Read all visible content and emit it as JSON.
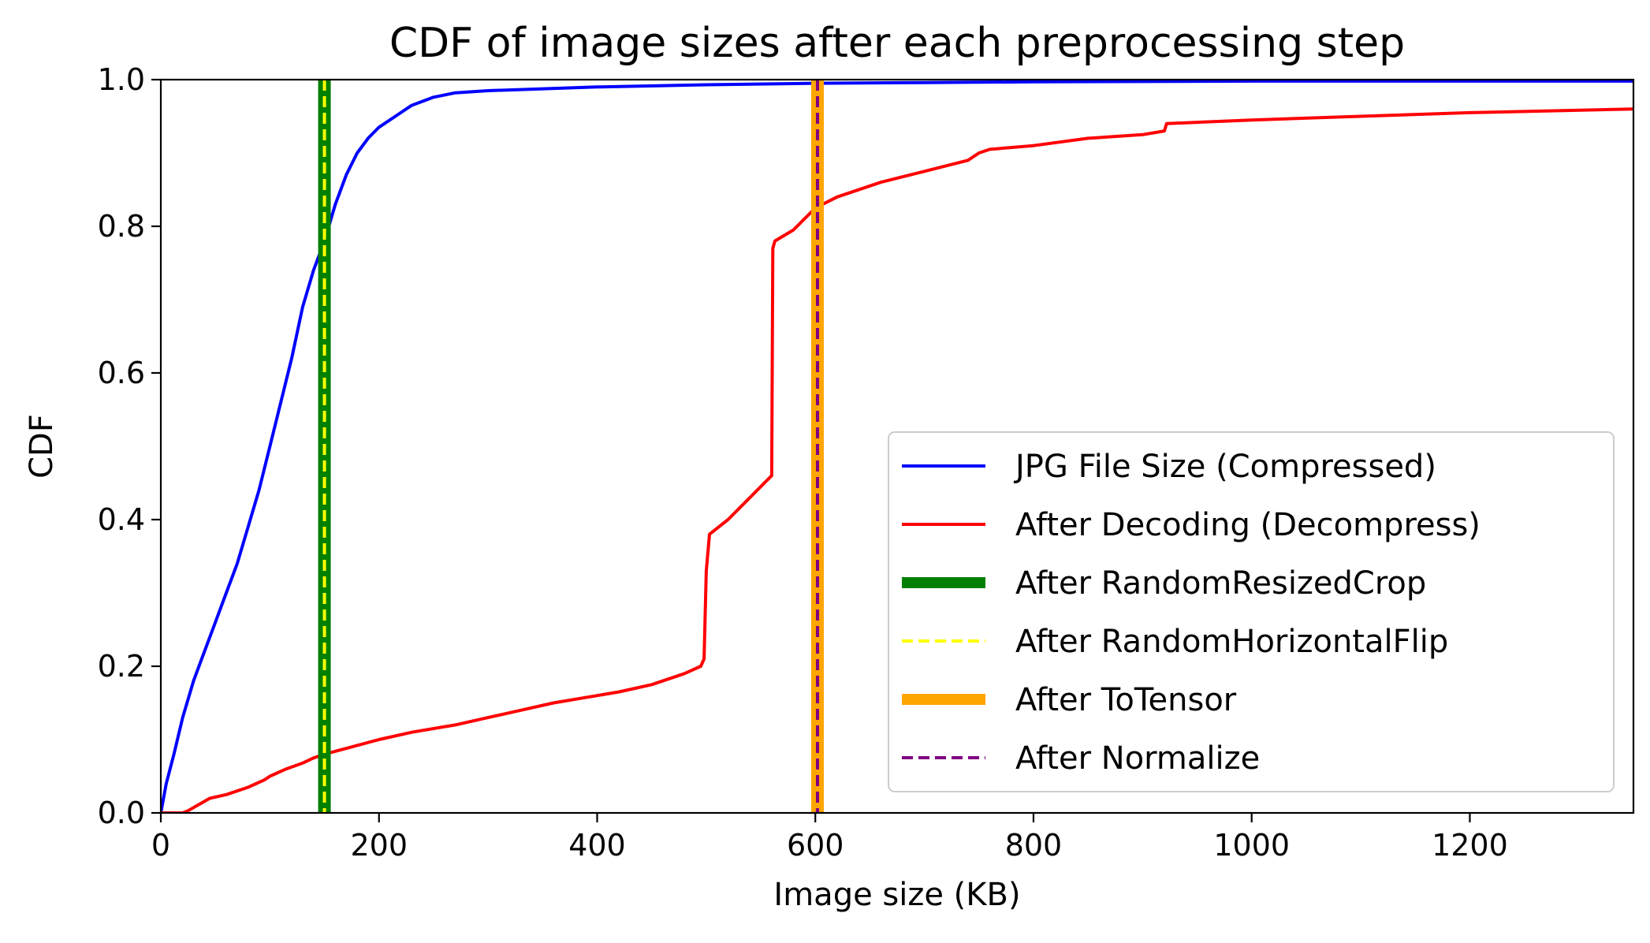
{
  "chart_data": {
    "type": "line",
    "title": "CDF of image sizes after each preprocessing step",
    "xlabel": "Image size (KB)",
    "ylabel": "CDF",
    "xlim": [
      0,
      1350
    ],
    "ylim": [
      0,
      1.0
    ],
    "xticks": [
      0,
      200,
      400,
      600,
      800,
      1000,
      1200
    ],
    "xtick_labels": [
      "0",
      "200",
      "400",
      "600",
      "800",
      "1000",
      "1200"
    ],
    "yticks": [
      0,
      0.2,
      0.4,
      0.6,
      0.8,
      1.0
    ],
    "ytick_labels": [
      "0.0",
      "0.2",
      "0.4",
      "0.6",
      "0.8",
      "1.0"
    ],
    "grid": false,
    "legend_position": "lower-right",
    "series": [
      {
        "name": "JPG File Size (Compressed)",
        "color": "#0000ff",
        "style": "solid",
        "kind": "curve",
        "x": [
          0,
          5,
          12,
          20,
          30,
          40,
          50,
          60,
          70,
          80,
          90,
          100,
          110,
          120,
          130,
          140,
          150,
          160,
          170,
          180,
          190,
          200,
          215,
          230,
          250,
          270,
          300,
          400,
          500,
          600,
          700,
          800,
          1000,
          1200,
          1350
        ],
        "y": [
          0,
          0.04,
          0.08,
          0.13,
          0.18,
          0.22,
          0.26,
          0.3,
          0.34,
          0.39,
          0.44,
          0.5,
          0.56,
          0.62,
          0.69,
          0.74,
          0.78,
          0.83,
          0.87,
          0.9,
          0.92,
          0.935,
          0.95,
          0.965,
          0.976,
          0.982,
          0.985,
          0.99,
          0.993,
          0.995,
          0.996,
          0.997,
          0.998,
          0.998,
          0.998
        ]
      },
      {
        "name": "After Decoding (Decompress)",
        "color": "#ff0000",
        "style": "solid",
        "kind": "curve",
        "x": [
          0,
          20,
          25,
          45,
          60,
          80,
          95,
          100,
          115,
          130,
          140,
          150,
          175,
          200,
          230,
          270,
          300,
          330,
          360,
          400,
          420,
          450,
          480,
          495,
          498,
          500,
          503,
          520,
          540,
          560,
          561,
          563,
          580,
          600,
          620,
          660,
          700,
          740,
          750,
          760,
          800,
          850,
          900,
          920,
          922,
          1000,
          1100,
          1200,
          1350
        ],
        "y": [
          0,
          0,
          0.003,
          0.02,
          0.025,
          0.035,
          0.045,
          0.05,
          0.06,
          0.068,
          0.075,
          0.08,
          0.09,
          0.1,
          0.11,
          0.12,
          0.13,
          0.14,
          0.15,
          0.16,
          0.165,
          0.175,
          0.19,
          0.2,
          0.21,
          0.33,
          0.38,
          0.4,
          0.43,
          0.46,
          0.77,
          0.78,
          0.795,
          0.825,
          0.84,
          0.86,
          0.875,
          0.89,
          0.9,
          0.905,
          0.91,
          0.92,
          0.925,
          0.93,
          0.94,
          0.945,
          0.95,
          0.955,
          0.96
        ]
      },
      {
        "name": "After RandomResizedCrop",
        "color": "#008000",
        "style": "solid-thick",
        "kind": "vline",
        "x_value": 150
      },
      {
        "name": "After RandomHorizontalFlip",
        "color": "#ffff00",
        "style": "dashed",
        "kind": "vline",
        "x_value": 150
      },
      {
        "name": "After ToTensor",
        "color": "#ffa500",
        "style": "solid-thick",
        "kind": "vline",
        "x_value": 602
      },
      {
        "name": "After Normalize",
        "color": "#800080",
        "style": "dashed",
        "kind": "vline",
        "x_value": 602
      }
    ]
  }
}
